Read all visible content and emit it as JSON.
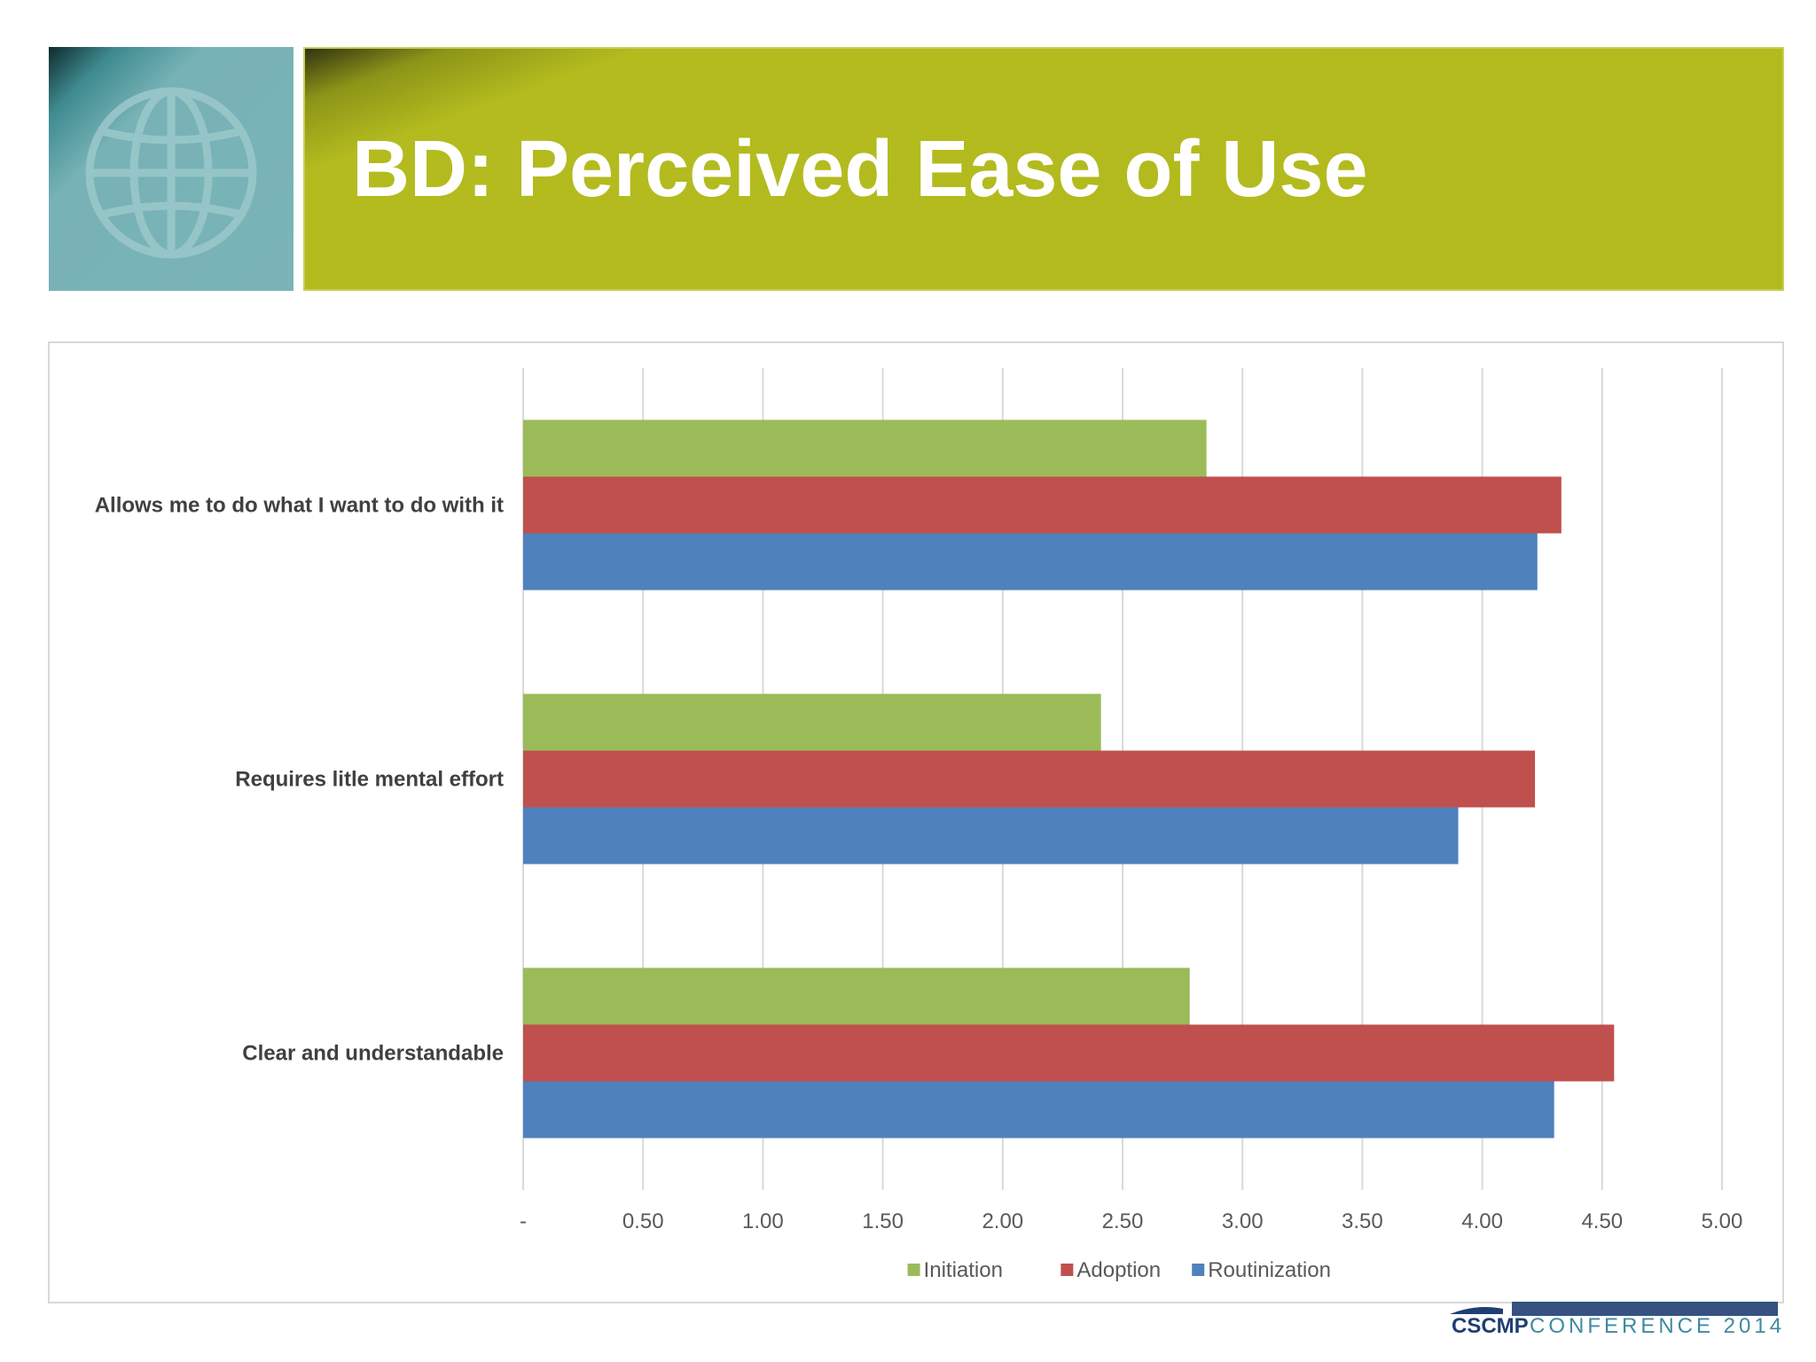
{
  "slide": {
    "title": "BD: Perceived Ease of Use"
  },
  "icons": {
    "header_icon": "globe-icon",
    "footer_logo": "cscmp-conference-logo"
  },
  "footer": {
    "org": "CSCMP",
    "event": "CONFERENCE 2014"
  },
  "colors": {
    "banner": "#b3ba1e",
    "icon_tile": "#7ab4b8",
    "initiation": "#9bbb59",
    "adoption": "#c0504d",
    "routinization": "#4f81bd"
  },
  "chart_data": {
    "type": "bar",
    "orientation": "horizontal",
    "title": "",
    "xlabel": "",
    "ylabel": "",
    "categories": [
      "Allows me to do what I want to do with it",
      "Requires litle mental effort",
      "Clear and understandable"
    ],
    "series": [
      {
        "name": "Initiation",
        "color": "#9bbb59",
        "values": [
          2.85,
          2.41,
          2.78
        ]
      },
      {
        "name": "Adoption",
        "color": "#c0504d",
        "values": [
          4.33,
          4.22,
          4.55
        ]
      },
      {
        "name": "Routinization",
        "color": "#4f81bd",
        "values": [
          4.23,
          3.9,
          4.3
        ]
      }
    ],
    "xlim": [
      0,
      5
    ],
    "x_ticks": [
      0,
      0.5,
      1,
      1.5,
      2,
      2.5,
      3,
      3.5,
      4,
      4.5,
      5
    ],
    "x_tick_labels": [
      "-",
      "0.50",
      "1.00",
      "1.50",
      "2.00",
      "2.50",
      "3.00",
      "3.50",
      "4.00",
      "4.50",
      "5.00"
    ],
    "grid": "vertical",
    "legend": "bottom"
  }
}
